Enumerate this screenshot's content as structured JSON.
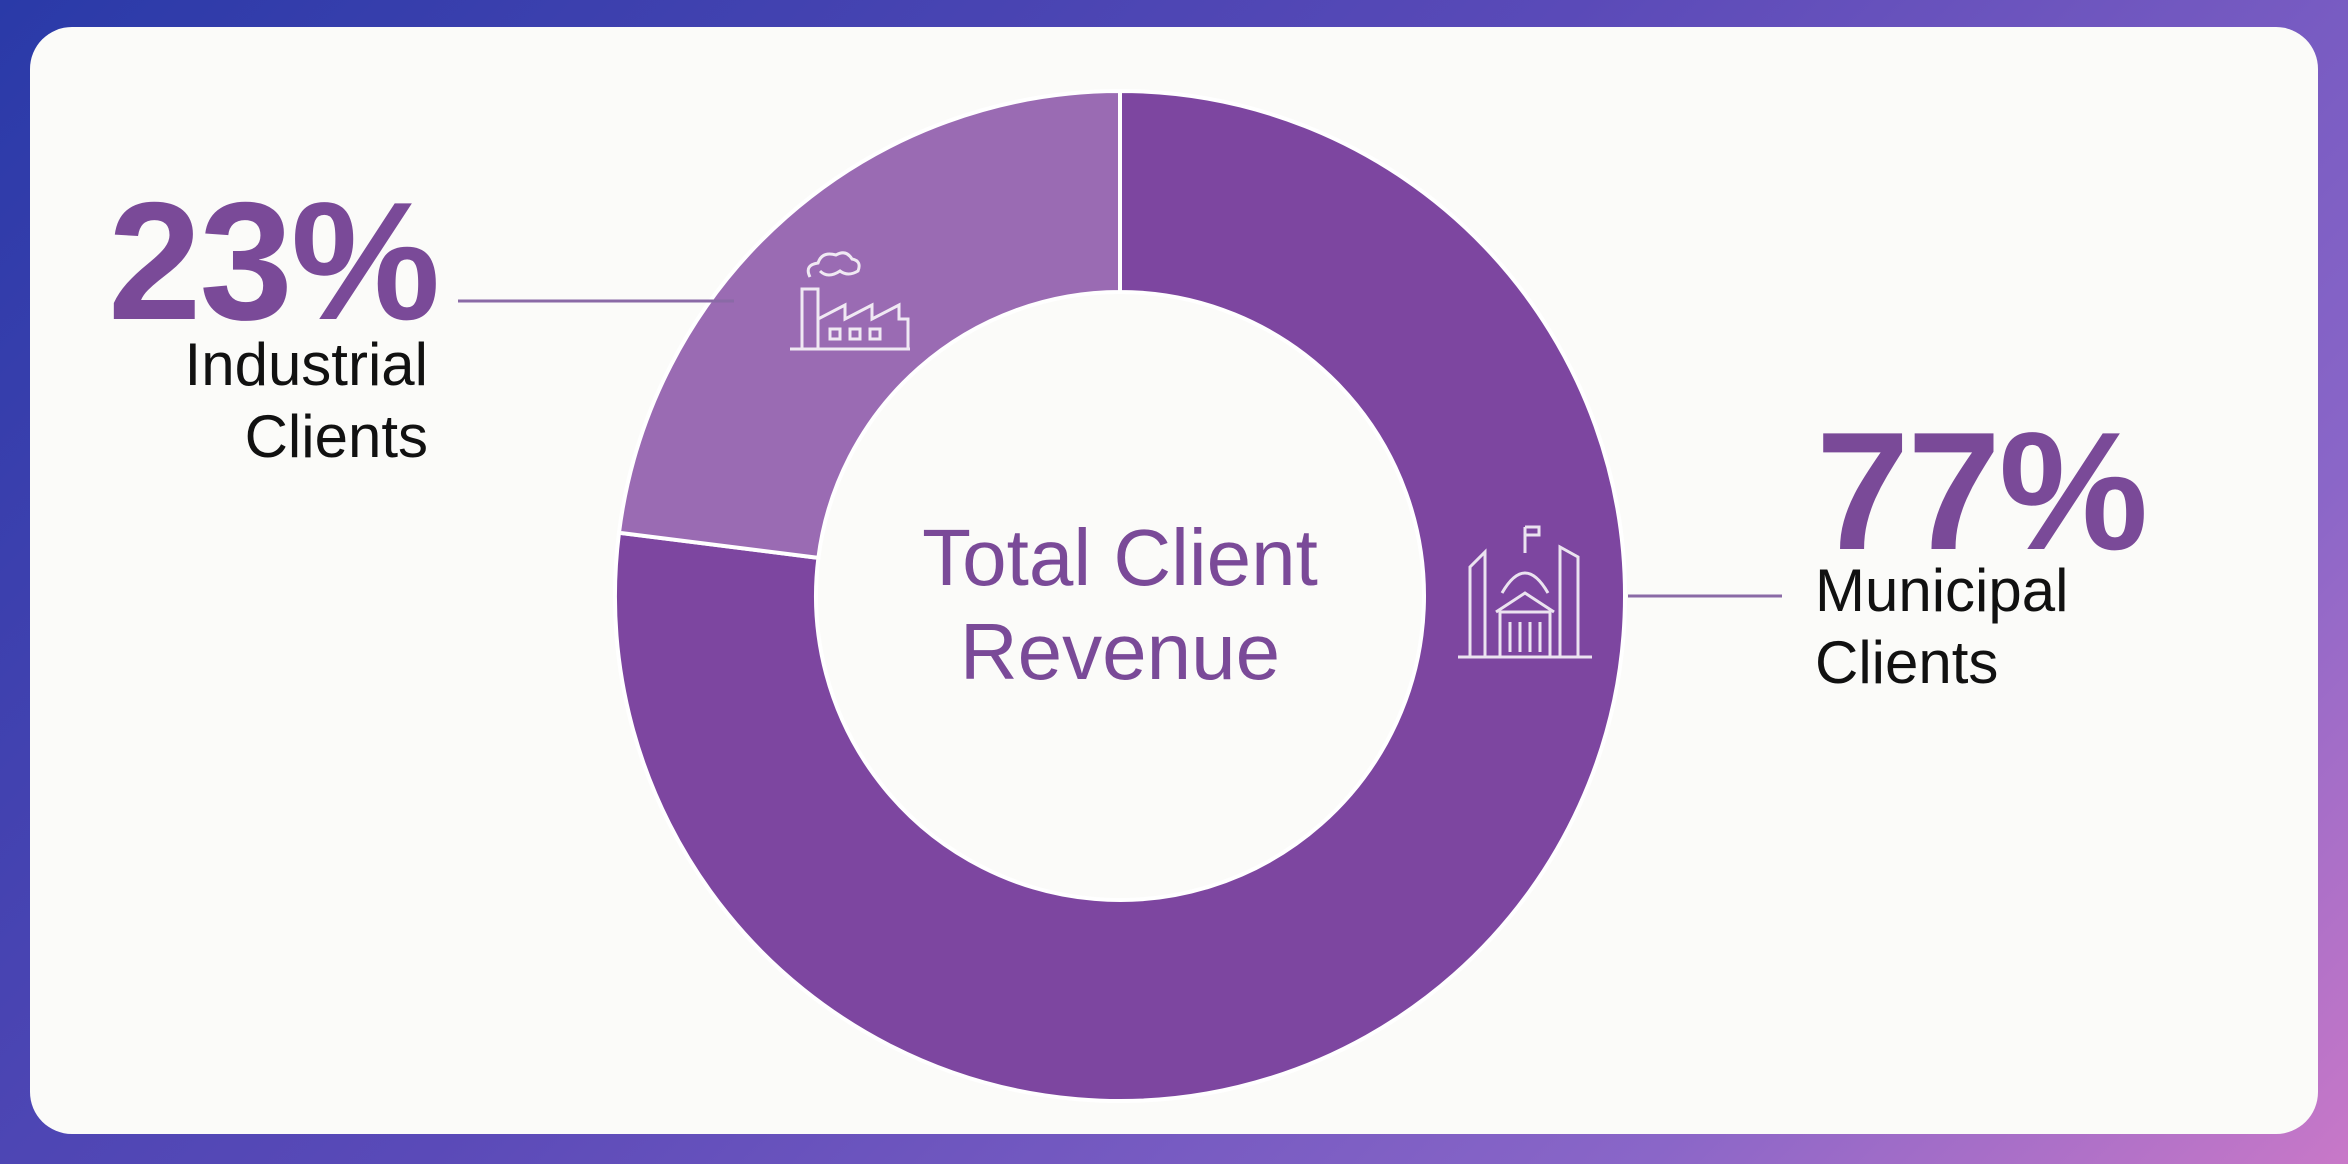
{
  "chart_data": {
    "type": "donut",
    "center_label": "Total Client Revenue",
    "categories": [
      "Industrial Clients",
      "Municipal Clients"
    ],
    "values": [
      23,
      77
    ],
    "value_labels": [
      "23%",
      "77%"
    ],
    "colors": [
      "#9a6bb3",
      "#7d46a0"
    ]
  }
}
